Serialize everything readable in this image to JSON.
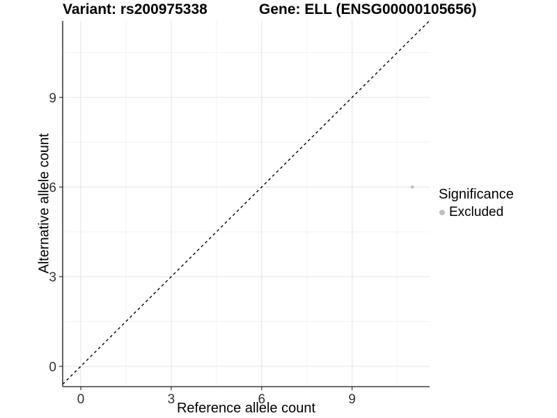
{
  "figure": {
    "title_left": "Variant: rs200975338",
    "title_right": "Gene: ELL (ENSG00000105656)"
  },
  "chart_data": {
    "type": "scatter",
    "title": "Variant: rs200975338 — Gene: ELL (ENSG00000105656)",
    "xlabel": "Reference allele count",
    "ylabel": "Alternative allele count",
    "xticks": [
      0,
      3,
      6,
      9
    ],
    "yticks": [
      0,
      3,
      6,
      9
    ],
    "xminor": [
      1.5,
      4.5,
      7.5,
      10.5
    ],
    "yminor": [
      1.5,
      4.5,
      7.5,
      10.5
    ],
    "xlim": [
      -0.6,
      11.57
    ],
    "ylim": [
      -0.68,
      11.56
    ],
    "grid": true,
    "legend_position": "right",
    "series": [
      {
        "name": "Excluded",
        "color": "#c0c0c0",
        "points": [
          {
            "x": 11,
            "y": 6
          }
        ]
      }
    ],
    "reference_line": {
      "type": "identity y=x",
      "style": "dashed",
      "color": "#000000",
      "from": -0.6,
      "to": 11.56
    },
    "legend": {
      "title": "Significance",
      "entries": [
        {
          "label": "Excluded",
          "color": "#c0c0c0"
        }
      ]
    }
  },
  "colors": {
    "background": "#ffffff",
    "grid_major": "#e7e7e7",
    "grid_minor": "#f3f3f3",
    "axis_line": "#3c3c3c",
    "tick_mark": "#333333",
    "tick_label": "#303030"
  }
}
